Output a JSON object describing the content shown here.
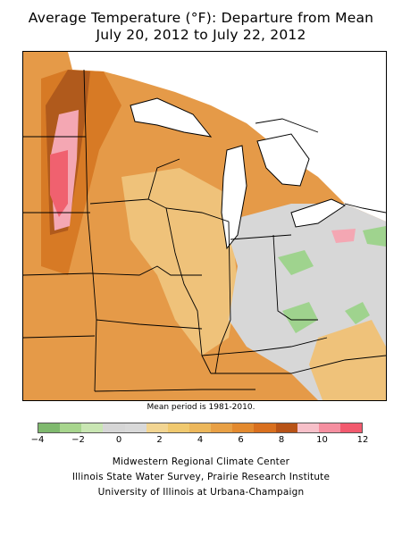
{
  "title_line1": "Average Temperature (°F): Departure from Mean",
  "title_line2": "July 20, 2012 to July 22, 2012",
  "mean_period_note": "Mean period is 1981-2010.",
  "legend": {
    "ticks": [
      "−4",
      "−2",
      "0",
      "2",
      "4",
      "6",
      "8",
      "10",
      "12"
    ],
    "colors": [
      "#7fb96e",
      "#a7d58d",
      "#c9e6b3",
      "#d6d6d6",
      "#d9d9d9",
      "#f2d592",
      "#f0c96f",
      "#ecb75b",
      "#e8a045",
      "#e38a2f",
      "#d9701f",
      "#b85317",
      "#f7c0c9",
      "#f58fa0",
      "#f25a6e"
    ]
  },
  "credits": {
    "line1": "Midwestern Regional Climate Center",
    "line2": "Illinois State Water Survey, Prairie Research Institute",
    "line3": "University of Illinois at Urbana-Champaign"
  },
  "map_colors": {
    "base_orange": "#e59a48",
    "light_orange": "#efc27a",
    "dark_orange": "#d77a25",
    "brown": "#b05a1c",
    "pink": "#f4a7b3",
    "red": "#f0616f",
    "gray": "#d7d7d7",
    "green": "#9fd38e",
    "water": "#ffffff",
    "border": "#000000"
  }
}
